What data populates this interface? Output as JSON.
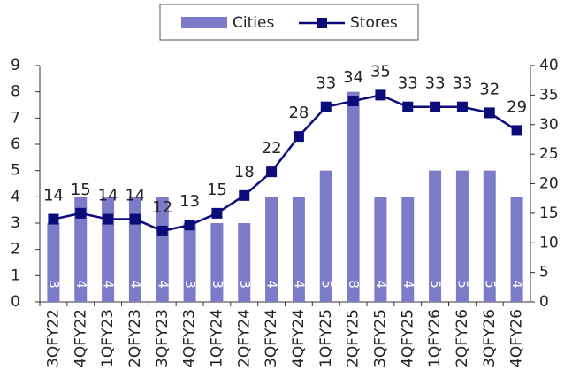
{
  "chart_data": {
    "type": "bar",
    "categories": [
      "3QFY22",
      "4QFY22",
      "1QFY23",
      "2QFY23",
      "3QFY23",
      "4QFY23",
      "1QFY24",
      "2QFY24",
      "3QFY24",
      "4QFY24",
      "1QFY25",
      "2QFY25",
      "3QFY25",
      "4QFY25",
      "1QFY26",
      "2QFY26",
      "3QFY26",
      "4QFY26"
    ],
    "series": [
      {
        "name": "Cities",
        "type": "bar",
        "color": "#7b7bc8",
        "values": [
          3,
          4,
          4,
          4,
          4,
          3,
          3,
          3,
          4,
          4,
          5,
          8,
          4,
          4,
          5,
          5,
          5,
          4
        ]
      },
      {
        "name": "Stores",
        "type": "line",
        "axis": "y2",
        "color": "#0b0b7a",
        "values": [
          14,
          15,
          14,
          14,
          12,
          13,
          15,
          18,
          22,
          28,
          33,
          34,
          35,
          33,
          33,
          33,
          32,
          29
        ]
      }
    ],
    "ylim": [
      0,
      9
    ],
    "yticks": [
      0,
      1,
      2,
      3,
      4,
      5,
      6,
      7,
      8,
      9
    ],
    "y2lim": [
      0,
      40
    ],
    "y2ticks": [
      0,
      5,
      10,
      15,
      20,
      25,
      30,
      35,
      40
    ],
    "legend": "top"
  }
}
